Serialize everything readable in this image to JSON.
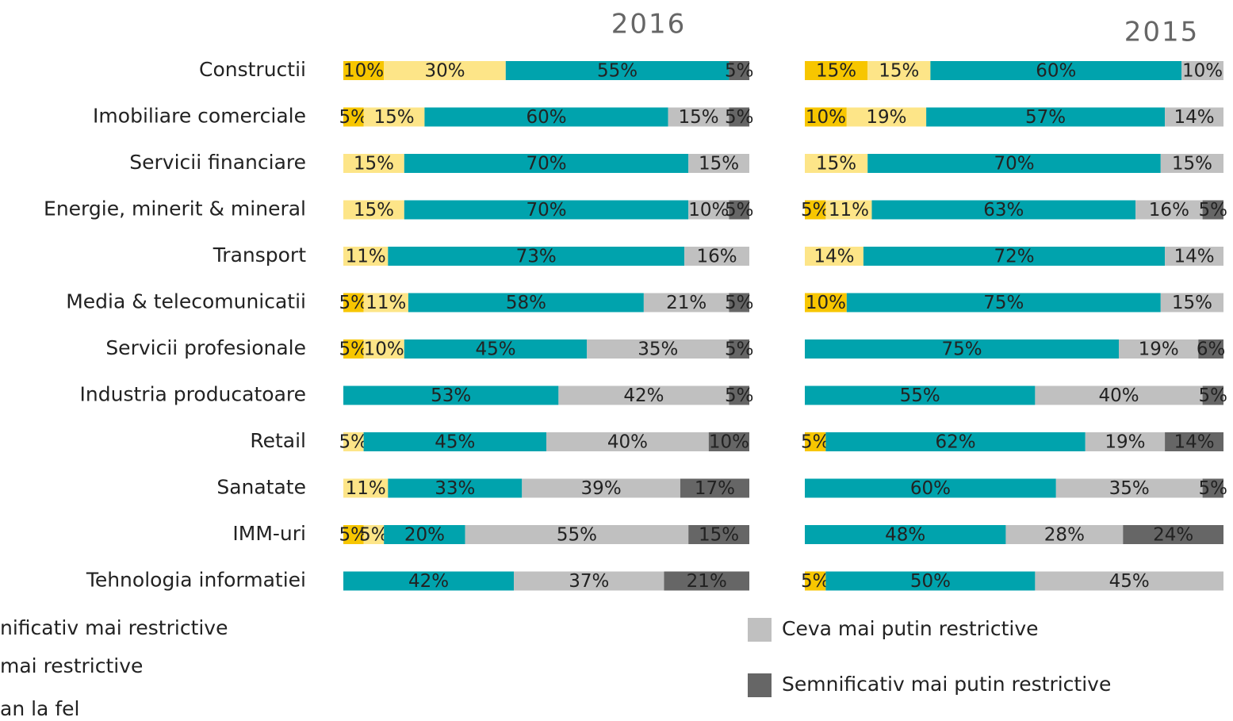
{
  "chart_data": [
    {
      "type": "bar",
      "horizontal": true,
      "stacked": true,
      "title": "2016",
      "categories": [
        "Constructii",
        "Imobiliare comerciale",
        "Servicii financiare",
        "Energie, minerit & mineral",
        "Transport",
        "Media & telecomunicatii",
        "Servicii profesionale",
        "Industria producatoare",
        "Retail",
        "Sanatate",
        "IMM-uri",
        "Tehnologia informatiei"
      ],
      "xlim": [
        0,
        100
      ],
      "series": [
        {
          "name": "nificativ mai restrictive",
          "color": "#f7c600",
          "values": [
            10,
            5,
            null,
            null,
            null,
            5,
            5,
            null,
            null,
            null,
            5,
            null
          ],
          "value_labels": [
            "10%",
            "5%",
            null,
            null,
            null,
            "5%",
            "5%",
            null,
            null,
            null,
            "5%",
            null
          ]
        },
        {
          "name": "mai restrictive",
          "color": "#fde588",
          "values": [
            30,
            15,
            15,
            15,
            11,
            11,
            10,
            null,
            5,
            11,
            5,
            null
          ],
          "value_labels": [
            "30%",
            "15%",
            "15%",
            "15%",
            "11%",
            "11%",
            "10%",
            null,
            "5%",
            "11%",
            "5%",
            null
          ]
        },
        {
          "name": "an la fel",
          "color": "#00a3ad",
          "values": [
            55,
            60,
            70,
            70,
            73,
            58,
            45,
            53,
            45,
            33,
            20,
            42
          ],
          "value_labels": [
            "55%",
            "60%",
            "70%",
            "70%",
            "73%",
            "58%",
            "45%",
            "53%",
            "45%",
            "33%",
            "20%",
            "42%"
          ]
        },
        {
          "name": "Ceva mai putin restrictive",
          "color": "#c0c0c0",
          "values": [
            null,
            15,
            15,
            10,
            16,
            21,
            35,
            42,
            40,
            39,
            55,
            37
          ],
          "value_labels": [
            null,
            "15%",
            "15%",
            "10%",
            "16%",
            "21%",
            "35%",
            "42%",
            "40%",
            "39%",
            "55%",
            "37%"
          ]
        },
        {
          "name": "Semnificativ mai putin restrictive",
          "color": "#666666",
          "values": [
            5,
            5,
            null,
            5,
            null,
            5,
            5,
            5,
            10,
            17,
            15,
            21
          ],
          "value_labels": [
            "5%",
            "5%",
            null,
            "5%",
            null,
            "5%",
            "5%",
            "5%",
            "10%",
            "17%",
            "15%",
            "21%"
          ]
        }
      ]
    },
    {
      "type": "bar",
      "horizontal": true,
      "stacked": true,
      "title": "2015",
      "xlim": [
        0,
        100
      ],
      "series": [
        {
          "color": "#f7c600",
          "values": [
            15,
            10,
            null,
            5,
            null,
            10,
            null,
            null,
            5,
            null,
            null,
            5
          ],
          "value_labels": [
            "15%",
            "10%",
            null,
            "5%",
            null,
            "10%",
            null,
            null,
            "5%",
            null,
            null,
            "5%"
          ]
        },
        {
          "color": "#fde588",
          "values": [
            15,
            19,
            15,
            11,
            14,
            null,
            null,
            null,
            null,
            null,
            null,
            null
          ],
          "value_labels": [
            "15%",
            "19%",
            "15%",
            "11%",
            "14%",
            null,
            null,
            null,
            null,
            null,
            null,
            null
          ]
        },
        {
          "color": "#00a3ad",
          "values": [
            60,
            57,
            70,
            63,
            72,
            75,
            75,
            55,
            62,
            60,
            48,
            50
          ],
          "value_labels": [
            "60%",
            "57%",
            "70%",
            "63%",
            "72%",
            "75%",
            "75%",
            "55%",
            "62%",
            "60%",
            "48%",
            "50%"
          ]
        },
        {
          "color": "#c0c0c0",
          "values": [
            10,
            14,
            15,
            16,
            14,
            15,
            19,
            40,
            19,
            35,
            28,
            45
          ],
          "value_labels": [
            "10%",
            "14%",
            "15%",
            "16%",
            "14%",
            "15%",
            "19%",
            "40%",
            "19%",
            "35%",
            "28%",
            "45%"
          ]
        },
        {
          "color": "#666666",
          "values": [
            null,
            null,
            null,
            5,
            null,
            null,
            6,
            5,
            14,
            5,
            24,
            null
          ],
          "value_labels": [
            null,
            null,
            null,
            "5%",
            null,
            null,
            "6%",
            "5%",
            "14%",
            "5%",
            "24%",
            null
          ]
        }
      ]
    }
  ]
}
